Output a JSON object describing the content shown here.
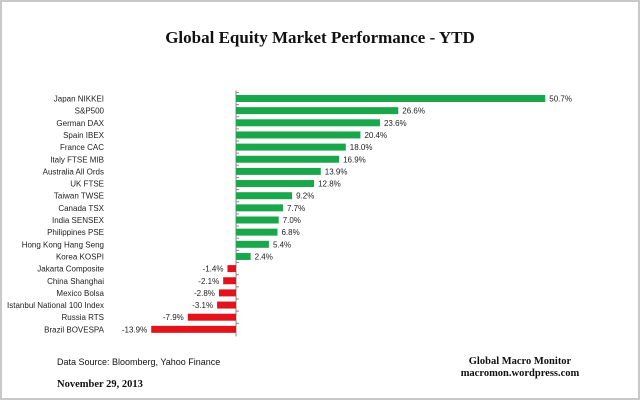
{
  "chart_data": {
    "type": "bar",
    "orientation": "horizontal",
    "title": "Global Equity Market Performance  - YTD",
    "categories": [
      "Japan NIKKEI",
      "S&P500",
      "German DAX",
      "Spain IBEX",
      "France CAC",
      "Italy FTSE  MIB",
      "Australia All Ords",
      "UK FTSE",
      "Taiwan  TWSE",
      "Canada TSX",
      "India SENSEX",
      "Philippines PSE",
      "Hong Kong Hang Seng",
      "Korea KOSPI",
      "Jakarta Composite",
      "China Shanghai",
      "Mexico Bolsa",
      "Istanbul National  100 Index",
      "Russia RTS",
      "Brazil BOVESPA"
    ],
    "values": [
      50.7,
      26.6,
      23.6,
      20.4,
      18.0,
      16.9,
      13.9,
      12.8,
      9.2,
      7.7,
      7.0,
      6.8,
      5.4,
      2.4,
      -1.4,
      -2.1,
      -2.8,
      -3.1,
      -7.9,
      -13.9
    ],
    "data_labels": [
      "50.7%",
      "26.6%",
      "23.6%",
      "20.4%",
      "18.0%",
      "16.9%",
      "13.9%",
      "12.8%",
      "9.2%",
      "7.7%",
      "7.0%",
      "6.8%",
      "5.4%",
      "2.4%",
      "-1.4%",
      "-2.1%",
      "-2.8%",
      "-3.1%",
      "-7.9%",
      "-13.9%"
    ],
    "colors": {
      "positive": "#1aa64a",
      "negative": "#e3131b"
    },
    "grid": false,
    "legend": "none"
  },
  "footer": {
    "source": "Data Source:   Bloomberg,  Yahoo Finance",
    "date": "November 29, 2013",
    "brand_name": "Global Macro Monitor",
    "brand_url": "macromon.wordpress.com"
  }
}
